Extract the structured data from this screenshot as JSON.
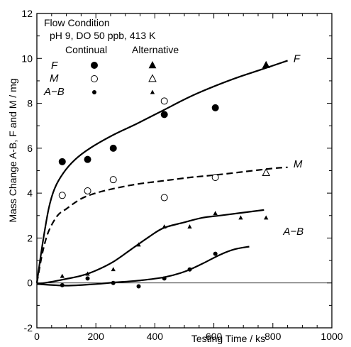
{
  "chart_data": {
    "type": "scatter",
    "xlabel": "Testing Time  / ks",
    "ylabel": "Mass Change A-B, F and M / mg",
    "xlim": [
      0,
      1000
    ],
    "ylim": [
      -2,
      12
    ],
    "x_ticks": [
      0,
      200,
      400,
      600,
      800,
      1000
    ],
    "y_ticks": [
      -2,
      0,
      2,
      4,
      6,
      8,
      10,
      12
    ],
    "grid": false,
    "legend": {
      "placement": "top-left",
      "title": "Flow Condition",
      "subtitle": "pH 9, DO 50 ppb, 413 K",
      "col_continual": "Continual",
      "col_alternative": "Alternative",
      "rows": [
        {
          "name": "F",
          "label": "F"
        },
        {
          "name": "M",
          "label": "M"
        },
        {
          "name": "A−B",
          "label": "A−B"
        }
      ]
    },
    "series": [
      {
        "name": "F",
        "condition": "Continual",
        "marker": "filled-circle-large",
        "x": [
          86,
          172,
          259,
          432,
          605
        ],
        "y": [
          5.4,
          5.5,
          6.0,
          7.5,
          7.8
        ]
      },
      {
        "name": "F",
        "condition": "Alternative",
        "marker": "filled-triangle-large",
        "x": [
          777
        ],
        "y": [
          9.7
        ]
      },
      {
        "name": "M",
        "condition": "Continual",
        "marker": "open-circle",
        "x": [
          86,
          172,
          259,
          432,
          432,
          605
        ],
        "y": [
          3.9,
          4.1,
          4.6,
          8.1,
          3.8,
          4.7
        ]
      },
      {
        "name": "M",
        "condition": "Alternative",
        "marker": "open-triangle",
        "x": [
          777
        ],
        "y": [
          4.9
        ]
      },
      {
        "name": "A−B",
        "condition": "Continual",
        "marker": "filled-circle-small",
        "x": [
          86,
          172,
          259,
          345,
          432,
          518,
          605
        ],
        "y": [
          -0.1,
          0.2,
          0.0,
          -0.15,
          0.2,
          0.6,
          1.3
        ]
      },
      {
        "name": "A−B",
        "condition": "Alternative",
        "marker": "filled-triangle-small",
        "x": [
          86,
          172,
          259,
          345,
          432,
          518,
          605,
          691,
          777
        ],
        "y": [
          0.3,
          0.4,
          0.6,
          1.7,
          2.5,
          2.5,
          3.1,
          2.9,
          2.9
        ]
      }
    ],
    "curves": [
      {
        "name": "F",
        "style": "solid",
        "x": [
          0,
          20,
          40,
          60,
          90,
          130,
          180,
          260,
          340,
          430,
          520,
          600,
          680,
          760,
          850
        ],
        "y": [
          0,
          1.8,
          3.3,
          4.2,
          4.9,
          5.5,
          6.0,
          6.6,
          7.1,
          7.7,
          8.3,
          8.75,
          9.15,
          9.5,
          9.9
        ]
      },
      {
        "name": "M",
        "style": "dashed",
        "x": [
          0,
          20,
          40,
          70,
          100,
          150,
          200,
          260,
          340,
          430,
          520,
          600,
          700,
          800,
          850
        ],
        "y": [
          0,
          1.4,
          2.3,
          3.0,
          3.3,
          3.75,
          4.0,
          4.2,
          4.4,
          4.55,
          4.7,
          4.8,
          4.95,
          5.1,
          5.15
        ]
      },
      {
        "name": "A−B upper",
        "style": "solid",
        "x": [
          0,
          50,
          100,
          150,
          200,
          260,
          320,
          380,
          430,
          500,
          560,
          620,
          680,
          770
        ],
        "y": [
          -0.05,
          0.05,
          0.18,
          0.32,
          0.55,
          0.95,
          1.5,
          2.05,
          2.45,
          2.7,
          2.9,
          3.0,
          3.1,
          3.25
        ]
      },
      {
        "name": "A−B lower",
        "style": "solid",
        "x": [
          0,
          100,
          200,
          260,
          340,
          430,
          500,
          560,
          620,
          670,
          720
        ],
        "y": [
          -0.05,
          -0.12,
          -0.05,
          0.02,
          0.1,
          0.25,
          0.5,
          0.85,
          1.25,
          1.5,
          1.62
        ]
      }
    ],
    "curve_labels": [
      {
        "text": "F",
        "x": 870,
        "y": 10.0
      },
      {
        "text": "M",
        "x": 870,
        "y": 5.3
      },
      {
        "text": "A−B",
        "x": 835,
        "y": 2.3
      }
    ],
    "zero_line": 0
  }
}
